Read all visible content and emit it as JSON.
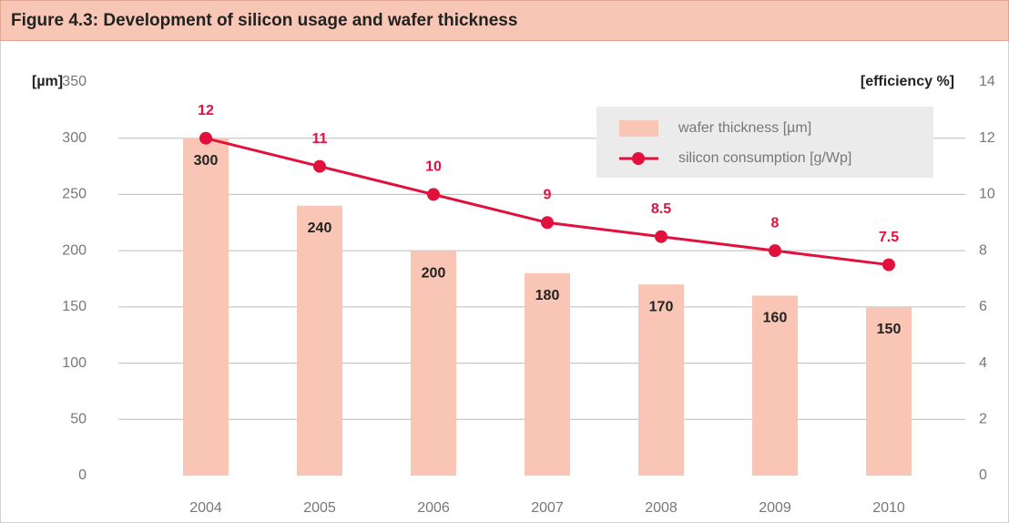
{
  "chart_data": {
    "type": "bar",
    "title": "Figure 4.3: Development of silicon usage and wafer thickness",
    "y_label": "[µm]",
    "y2_label": "[efficiency %]",
    "categories": [
      "2004",
      "2005",
      "2006",
      "2007",
      "2008",
      "2009",
      "2010"
    ],
    "series": [
      {
        "name": "wafer thickness [µm]",
        "type": "bar",
        "color": "#f9c6b5",
        "values": [
          300,
          240,
          200,
          180,
          170,
          160,
          150
        ]
      },
      {
        "name": "silicon consumption [g/Wp]",
        "type": "line",
        "axis": "y2",
        "color": "#e2103c",
        "values": [
          12,
          11,
          10,
          9,
          8.5,
          8,
          7.5
        ]
      }
    ],
    "ylim": [
      0,
      350
    ],
    "yticks": [
      0,
      50,
      100,
      150,
      200,
      250,
      300,
      350
    ],
    "y2lim": [
      0,
      14
    ],
    "y2ticks": [
      0,
      2,
      4,
      6,
      8,
      10,
      12,
      14
    ],
    "grid": true,
    "legend": "top-right"
  }
}
